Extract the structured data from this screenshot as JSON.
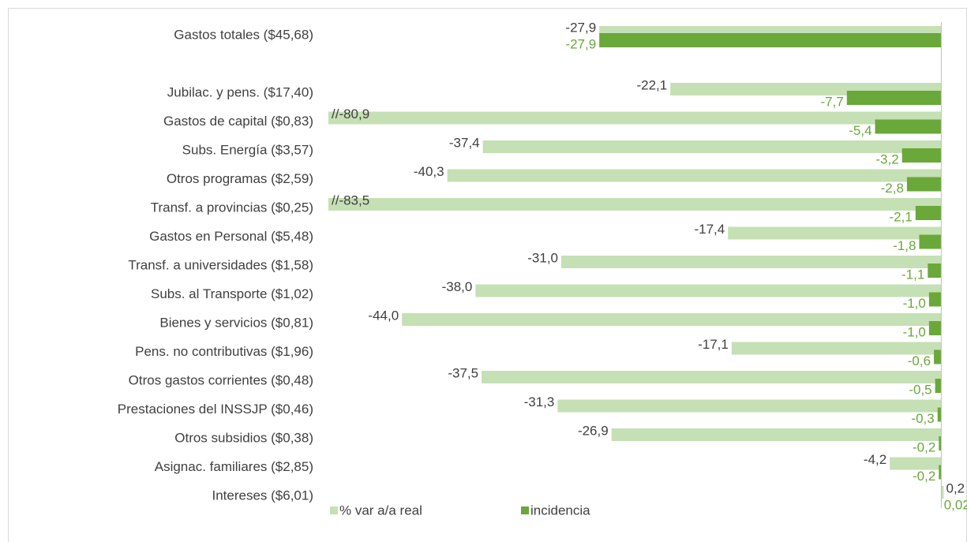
{
  "chart_data": {
    "type": "bar",
    "categories": [
      "Gastos totales ($45,68)",
      "Jubilac. y pens. ($17,40)",
      "Gastos de capital ($0,83)",
      "Subs. Energía ($3,57)",
      "Otros programas ($2,59)",
      "Transf. a provincias ($0,25)",
      "Gastos en Personal ($5,48)",
      "Transf. a universidades ($1,58)",
      "Subs. al Transporte ($1,02)",
      "Bienes y servicios ($0,81)",
      "Pens. no contributivas ($1,96)",
      "Otros gastos corrientes ($0,48)",
      "Prestaciones del INSSJP ($0,46)",
      "Otros subsidios ($0,38)",
      "Asignac. familiares ($2,85)",
      "Intereses ($6,01)"
    ],
    "series": [
      {
        "name": "% var a/a real",
        "color": "#c5e0b4",
        "values": [
          -27.9,
          -22.1,
          -80.9,
          -37.4,
          -40.3,
          -83.5,
          -17.4,
          -31.0,
          -38.0,
          -44.0,
          -17.1,
          -37.5,
          -31.3,
          -26.9,
          -4.2,
          0.2
        ],
        "value_labels": [
          "-27,9",
          "-22,1",
          "//-80,9",
          "-37,4",
          "-40,3",
          "//-83,5",
          "-17,4",
          "-31,0",
          "-38,0",
          "-44,0",
          "-17,1",
          "-37,5",
          "-31,3",
          "-26,9",
          "-4,2",
          "0,2"
        ]
      },
      {
        "name": "incidencia",
        "color": "#6aa839",
        "values": [
          -27.9,
          -7.7,
          -5.4,
          -3.2,
          -2.8,
          -2.1,
          -1.8,
          -1.1,
          -1.0,
          -1.0,
          -0.6,
          -0.5,
          -0.3,
          -0.2,
          -0.2,
          0.02
        ],
        "value_labels": [
          "-27,9",
          "-7,7",
          "-5,4",
          "-3,2",
          "-2,8",
          "-2,1",
          "-1,8",
          "-1,1",
          "-1,0",
          "-1,0",
          "-0,6",
          "-0,5",
          "-0,3",
          "-0,2",
          "-0,2",
          "0,02"
        ]
      }
    ],
    "xlim": [
      -50,
      2.1
    ]
  }
}
